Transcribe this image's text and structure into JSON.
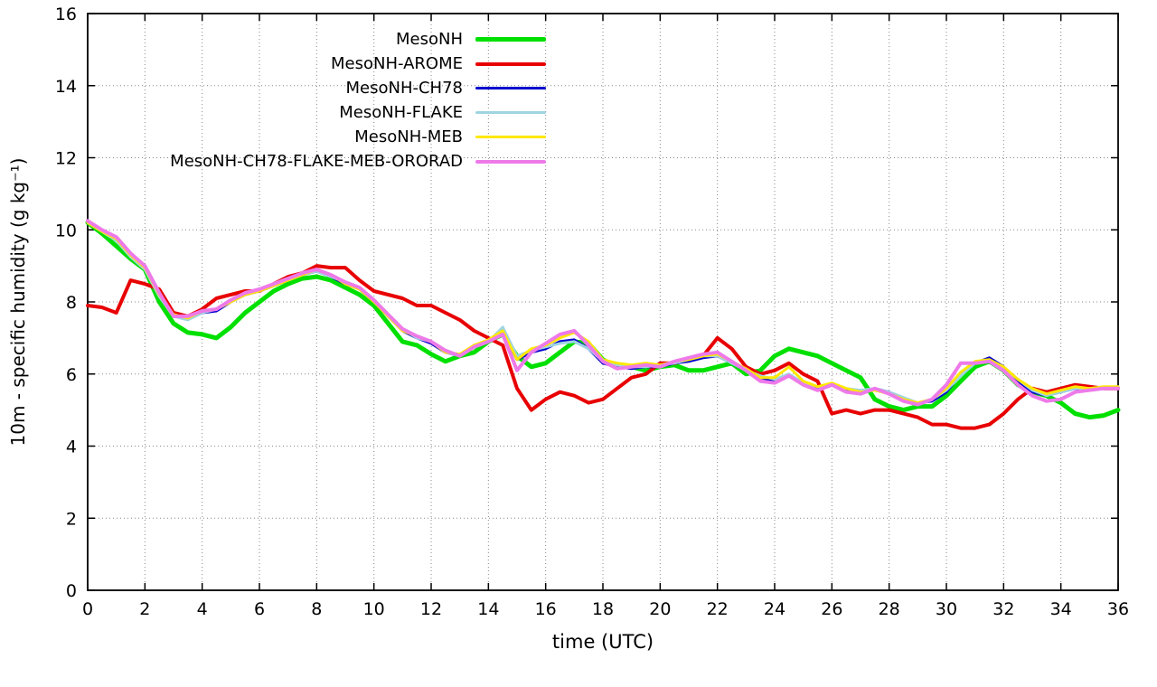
{
  "page": {
    "background": "#ffffff"
  },
  "chart_data": {
    "type": "line",
    "title": "",
    "xlabel": "time (UTC)",
    "ylabel": "10m - specific humidity (g kg⁻¹)",
    "xlim": [
      0,
      36
    ],
    "ylim": [
      0,
      16
    ],
    "xticks": [
      0,
      2,
      4,
      6,
      8,
      10,
      12,
      14,
      16,
      18,
      20,
      22,
      24,
      26,
      28,
      30,
      32,
      34,
      36
    ],
    "yticks": [
      0,
      2,
      4,
      6,
      8,
      10,
      12,
      14,
      16
    ],
    "grid": true,
    "grid_color": "#888888",
    "border_color": "#000000",
    "legend_position": "top-center",
    "x": [
      0,
      0.5,
      1,
      1.5,
      2,
      2.5,
      3,
      3.5,
      4,
      4.5,
      5,
      5.5,
      6,
      6.5,
      7,
      7.5,
      8,
      8.5,
      9,
      9.5,
      10,
      10.5,
      11,
      11.5,
      12,
      12.5,
      13,
      13.5,
      14,
      14.5,
      15,
      15.5,
      16,
      16.5,
      17,
      17.5,
      18,
      18.5,
      19,
      19.5,
      20,
      20.5,
      21,
      21.5,
      22,
      22.5,
      23,
      23.5,
      24,
      24.5,
      25,
      25.5,
      26,
      26.5,
      27,
      27.5,
      28,
      28.5,
      29,
      29.5,
      30,
      30.5,
      31,
      31.5,
      32,
      32.5,
      33,
      33.5,
      34,
      34.5,
      35,
      35.5,
      36
    ],
    "series": [
      {
        "name": "MesoNH",
        "color": "#00e000",
        "lw": 5,
        "values": [
          10.2,
          9.9,
          9.55,
          9.2,
          8.9,
          8.0,
          7.4,
          7.15,
          7.1,
          7.0,
          7.3,
          7.7,
          8.0,
          8.3,
          8.5,
          8.65,
          8.7,
          8.6,
          8.4,
          8.2,
          7.9,
          7.4,
          6.9,
          6.8,
          6.55,
          6.35,
          6.5,
          6.6,
          6.9,
          7.1,
          6.5,
          6.2,
          6.3,
          6.6,
          6.9,
          6.85,
          6.4,
          6.2,
          6.2,
          6.1,
          6.2,
          6.25,
          6.1,
          6.1,
          6.2,
          6.3,
          6.0,
          6.1,
          6.5,
          6.7,
          6.6,
          6.5,
          6.3,
          6.1,
          5.9,
          5.3,
          5.1,
          5.0,
          5.1,
          5.1,
          5.4,
          5.8,
          6.2,
          6.35,
          6.1,
          5.7,
          5.5,
          5.4,
          5.2,
          4.9,
          4.8,
          4.85,
          5.0
        ]
      },
      {
        "name": "MesoNH-AROME",
        "color": "#e80000",
        "lw": 4,
        "values": [
          7.9,
          7.85,
          7.7,
          8.6,
          8.5,
          8.35,
          7.7,
          7.6,
          7.8,
          8.1,
          8.2,
          8.3,
          8.3,
          8.5,
          8.7,
          8.8,
          9.0,
          8.95,
          8.95,
          8.6,
          8.3,
          8.2,
          8.1,
          7.9,
          7.9,
          7.7,
          7.5,
          7.2,
          7.0,
          6.8,
          5.6,
          5.0,
          5.3,
          5.5,
          5.4,
          5.2,
          5.3,
          5.6,
          5.9,
          6.0,
          6.3,
          6.3,
          6.4,
          6.5,
          7.0,
          6.7,
          6.2,
          6.0,
          6.1,
          6.3,
          6.0,
          5.8,
          4.9,
          5.0,
          4.9,
          5.0,
          5.0,
          4.9,
          4.8,
          4.6,
          4.6,
          4.5,
          4.5,
          4.6,
          4.9,
          5.3,
          5.6,
          5.5,
          5.6,
          5.7,
          5.65,
          5.6,
          5.6
        ]
      },
      {
        "name": "MesoNH-CH78",
        "color": "#0000cd",
        "lw": 3,
        "values": [
          10.2,
          9.95,
          9.75,
          9.3,
          8.95,
          8.2,
          7.6,
          7.55,
          7.7,
          7.75,
          8.0,
          8.2,
          8.3,
          8.45,
          8.6,
          8.75,
          8.85,
          8.7,
          8.5,
          8.35,
          8.0,
          7.6,
          7.2,
          7.0,
          6.85,
          6.6,
          6.5,
          6.8,
          6.9,
          7.15,
          6.4,
          6.6,
          6.7,
          6.9,
          6.95,
          6.7,
          6.3,
          6.2,
          6.15,
          6.2,
          6.2,
          6.3,
          6.35,
          6.45,
          6.5,
          6.3,
          6.1,
          5.9,
          5.8,
          5.95,
          5.7,
          5.6,
          5.7,
          5.55,
          5.5,
          5.6,
          5.5,
          5.3,
          5.2,
          5.25,
          5.5,
          6.0,
          6.3,
          6.45,
          6.2,
          5.8,
          5.5,
          5.4,
          5.5,
          5.6,
          5.55,
          5.6,
          5.6
        ]
      },
      {
        "name": "MesoNH-FLAKE",
        "color": "#9fd4e2",
        "lw": 3,
        "values": [
          10.2,
          9.95,
          9.7,
          9.25,
          8.9,
          8.15,
          7.6,
          7.5,
          7.7,
          7.8,
          8.0,
          8.2,
          8.35,
          8.5,
          8.6,
          8.75,
          8.85,
          8.7,
          8.55,
          8.35,
          8.05,
          7.65,
          7.25,
          7.0,
          6.9,
          6.6,
          6.5,
          6.75,
          6.9,
          7.3,
          6.5,
          6.65,
          6.75,
          6.85,
          6.9,
          6.7,
          6.35,
          6.25,
          6.2,
          6.2,
          6.25,
          6.3,
          6.4,
          6.5,
          6.5,
          6.3,
          6.1,
          5.95,
          5.85,
          6.0,
          5.75,
          5.65,
          5.7,
          5.6,
          5.55,
          5.6,
          5.5,
          5.35,
          5.2,
          5.3,
          5.55,
          5.95,
          6.3,
          6.4,
          6.15,
          5.85,
          5.55,
          5.4,
          5.5,
          5.6,
          5.6,
          5.6,
          5.65
        ]
      },
      {
        "name": "MesoNH-MEB",
        "color": "#ffe800",
        "lw": 3,
        "values": [
          10.2,
          9.95,
          9.75,
          9.3,
          8.95,
          8.2,
          7.65,
          7.55,
          7.75,
          7.8,
          8.0,
          8.2,
          8.3,
          8.45,
          8.6,
          8.75,
          8.9,
          8.75,
          8.5,
          8.35,
          8.0,
          7.6,
          7.2,
          7.05,
          6.9,
          6.6,
          6.55,
          6.8,
          6.95,
          7.2,
          6.4,
          6.7,
          6.8,
          7.0,
          7.15,
          6.9,
          6.4,
          6.3,
          6.25,
          6.3,
          6.25,
          6.35,
          6.4,
          6.5,
          6.55,
          6.35,
          6.15,
          5.9,
          5.9,
          6.2,
          5.8,
          5.65,
          5.75,
          5.6,
          5.5,
          5.55,
          5.45,
          5.3,
          5.2,
          5.3,
          5.6,
          6.05,
          6.35,
          6.4,
          6.2,
          5.85,
          5.6,
          5.45,
          5.55,
          5.65,
          5.6,
          5.65,
          5.65
        ]
      },
      {
        "name": "MesoNH-CH78-FLAKE-MEB-ORORAD",
        "color": "#ee7ae9",
        "lw": 4,
        "values": [
          10.25,
          10.0,
          9.8,
          9.35,
          9.0,
          8.25,
          7.6,
          7.6,
          7.75,
          7.8,
          8.05,
          8.25,
          8.35,
          8.5,
          8.65,
          8.8,
          8.9,
          8.75,
          8.55,
          8.4,
          8.05,
          7.65,
          7.25,
          7.05,
          6.9,
          6.65,
          6.5,
          6.75,
          6.9,
          7.1,
          6.1,
          6.6,
          6.85,
          7.1,
          7.2,
          6.8,
          6.35,
          6.15,
          6.2,
          6.25,
          6.2,
          6.35,
          6.45,
          6.55,
          6.6,
          6.35,
          6.1,
          5.8,
          5.75,
          5.95,
          5.7,
          5.55,
          5.7,
          5.5,
          5.45,
          5.6,
          5.45,
          5.25,
          5.15,
          5.3,
          5.7,
          6.3,
          6.3,
          6.35,
          6.1,
          5.7,
          5.4,
          5.25,
          5.3,
          5.5,
          5.55,
          5.6,
          5.6
        ]
      }
    ]
  }
}
